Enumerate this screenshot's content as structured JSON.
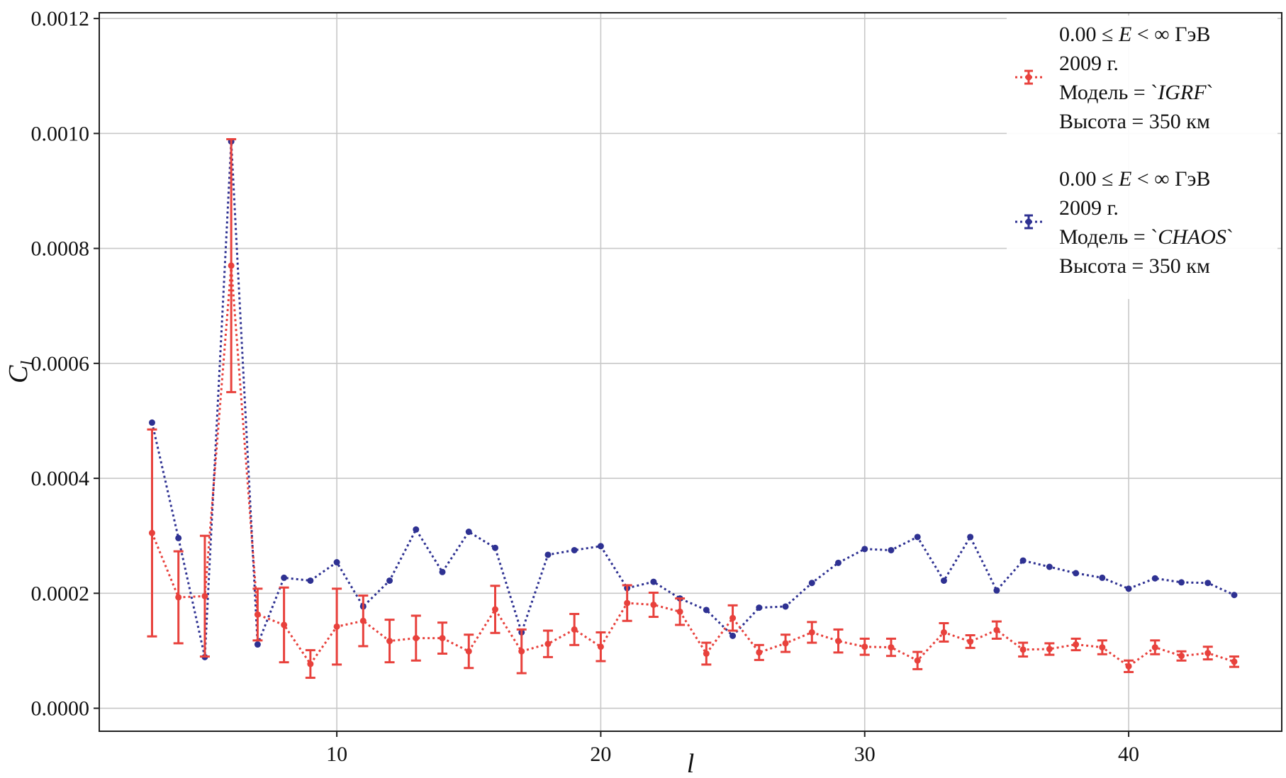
{
  "chart_data": {
    "type": "line",
    "title": "",
    "xlabel": "l",
    "ylabel": "C_l",
    "xlim": [
      1,
      45.8
    ],
    "ylim": [
      -4e-05,
      0.00121
    ],
    "x_ticks": [
      10,
      20,
      30,
      40
    ],
    "y_ticks": [
      0.0,
      0.0002,
      0.0004,
      0.0006,
      0.0008,
      0.001,
      0.0012
    ],
    "y_tick_labels": [
      "0.0000",
      "0.0002",
      "0.0004",
      "0.0006",
      "0.0008",
      "0.0010",
      "0.0012"
    ],
    "x_tick_labels": [
      "10",
      "20",
      "30",
      "40"
    ],
    "grid": true,
    "legend_position": "top-right",
    "x": [
      3,
      4,
      5,
      6,
      7,
      8,
      9,
      10,
      11,
      12,
      13,
      14,
      15,
      16,
      17,
      18,
      19,
      20,
      21,
      22,
      23,
      24,
      25,
      26,
      27,
      28,
      29,
      30,
      31,
      32,
      33,
      34,
      35,
      36,
      37,
      38,
      39,
      40,
      41,
      42,
      43,
      44
    ],
    "series": [
      {
        "legend": [
          "0.00 ≤ E < ∞ ГэВ",
          "2009 г.",
          "Модель = `IGRF`",
          "Высота = 350 км"
        ],
        "color": "#e8413c",
        "values": [
          0.000305,
          0.000193,
          0.000195,
          0.00077,
          0.000163,
          0.000145,
          7.7e-05,
          0.000142,
          0.000152,
          0.000117,
          0.000122,
          0.000122,
          9.9e-05,
          0.000172,
          9.9e-05,
          0.000112,
          0.000137,
          0.000107,
          0.000183,
          0.00018,
          0.000168,
          9.5e-05,
          0.000157,
          9.7e-05,
          0.000113,
          0.000132,
          0.000117,
          0.000107,
          0.000106,
          8.3e-05,
          0.000132,
          0.000116,
          0.000136,
          0.000102,
          0.000103,
          0.000111,
          0.000106,
          7.3e-05,
          0.000106,
          9.1e-05,
          9.6e-05,
          8.1e-05
        ],
        "errors": [
          0.00018,
          8e-05,
          0.000105,
          0.00022,
          4.5e-05,
          6.5e-05,
          2.4e-05,
          6.6e-05,
          4.4e-05,
          3.7e-05,
          3.9e-05,
          2.7e-05,
          2.9e-05,
          4.1e-05,
          3.8e-05,
          2.3e-05,
          2.7e-05,
          2.5e-05,
          3.1e-05,
          2.1e-05,
          2.3e-05,
          1.9e-05,
          2.2e-05,
          1.3e-05,
          1.5e-05,
          1.8e-05,
          2e-05,
          1.4e-05,
          1.5e-05,
          1.5e-05,
          1.6e-05,
          1.1e-05,
          1.5e-05,
          1.2e-05,
          1e-05,
          1e-05,
          1.2e-05,
          1e-05,
          1.2e-05,
          8e-06,
          1.1e-05,
          9e-06
        ]
      },
      {
        "legend": [
          "0.00 ≤ E < ∞ ГэВ",
          "2009 г.",
          "Модель = `CHAOS`",
          "Высота = 350 км"
        ],
        "color": "#2e3192",
        "values": [
          0.000497,
          0.000296,
          8.9e-05,
          0.000986,
          0.000111,
          0.000227,
          0.000222,
          0.000254,
          0.000177,
          0.000222,
          0.000311,
          0.000237,
          0.000307,
          0.000279,
          0.000132,
          0.000267,
          0.000275,
          0.000282,
          0.000209,
          0.00022,
          0.000191,
          0.000171,
          0.000126,
          0.000175,
          0.000177,
          0.000218,
          0.000253,
          0.000277,
          0.000275,
          0.000298,
          0.000222,
          0.000298,
          0.000205,
          0.000257,
          0.000246,
          0.000235,
          0.000227,
          0.000208,
          0.000226,
          0.000219,
          0.000218,
          0.000197
        ]
      }
    ]
  }
}
